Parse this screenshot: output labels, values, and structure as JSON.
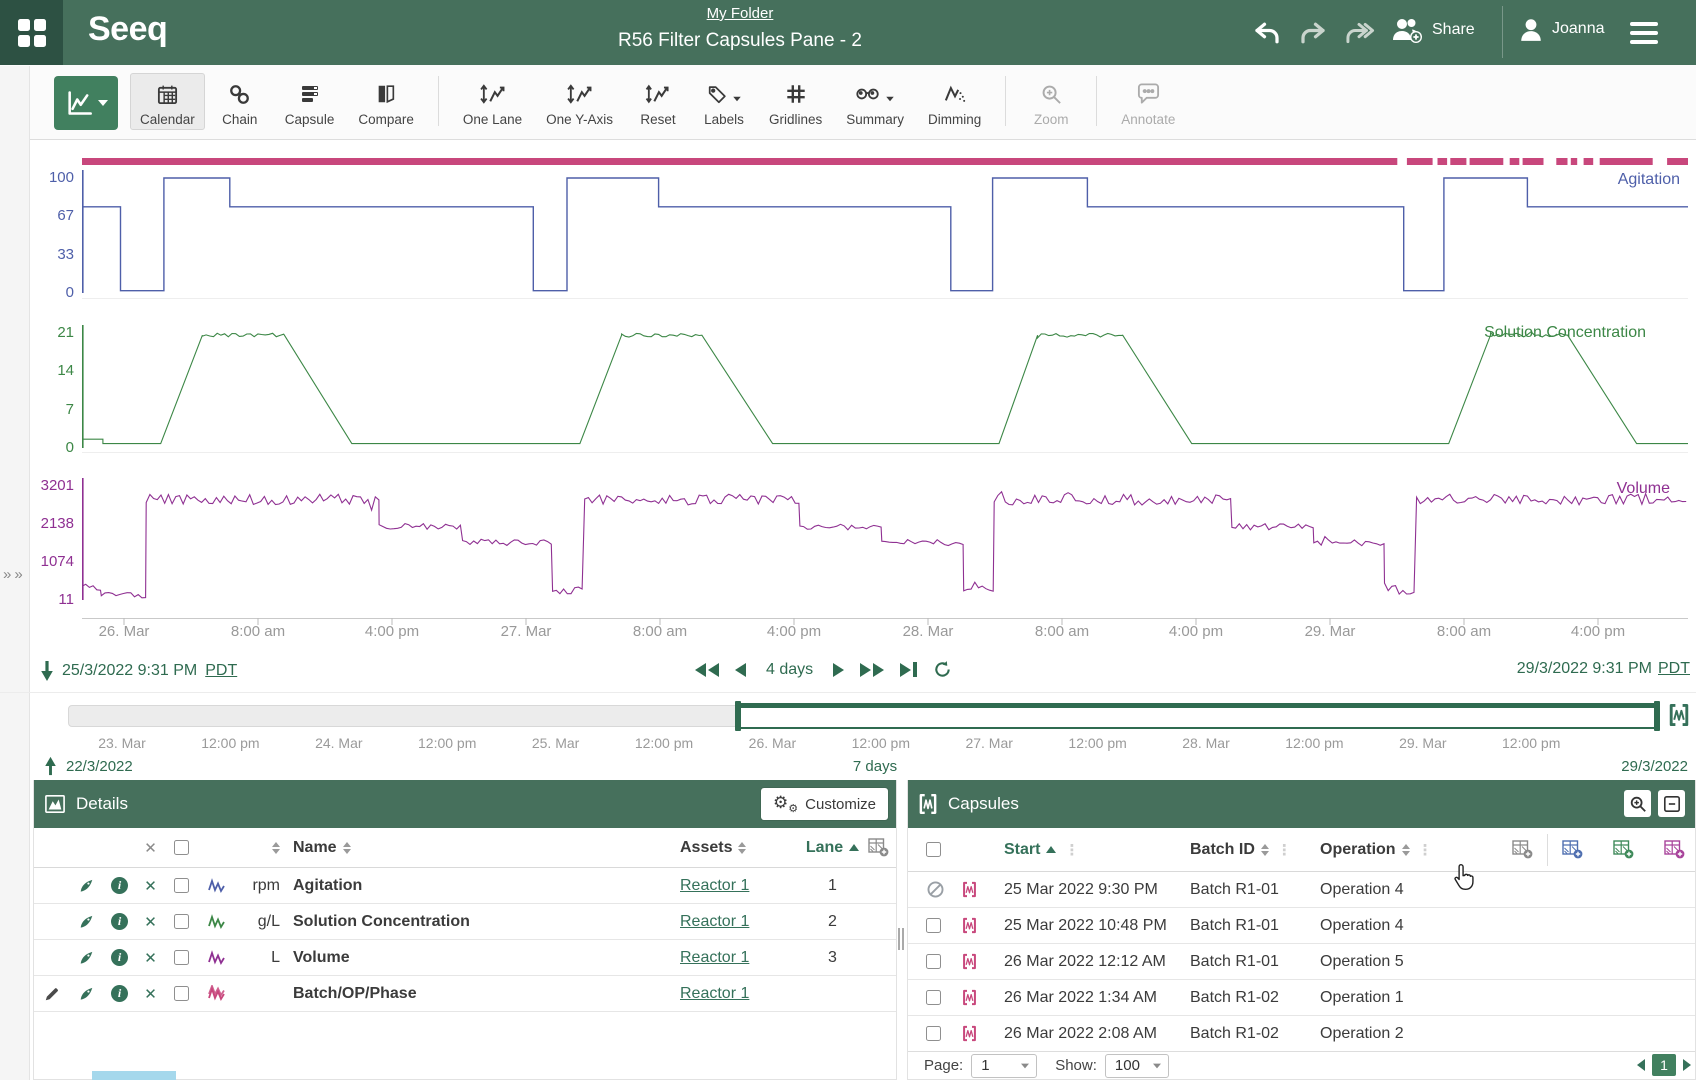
{
  "header": {
    "breadcrumb": "My Folder",
    "title": "R56 Filter Capsules Pane - 2",
    "share": "Share",
    "user": "Joanna"
  },
  "toolbar": {
    "tools": [
      {
        "id": "calendar",
        "label": "Calendar",
        "icon": "calendar",
        "group": 1,
        "active": true
      },
      {
        "id": "chain",
        "label": "Chain",
        "icon": "chain",
        "group": 1
      },
      {
        "id": "capsule",
        "label": "Capsule",
        "icon": "capsule",
        "group": 1
      },
      {
        "id": "compare",
        "label": "Compare",
        "icon": "compare",
        "group": 1
      },
      {
        "id": "one-lane",
        "label": "One Lane",
        "icon": "onelane",
        "group": 2
      },
      {
        "id": "one-y-axis",
        "label": "One Y-Axis",
        "icon": "onelane",
        "group": 2
      },
      {
        "id": "reset",
        "label": "Reset",
        "icon": "reset",
        "group": 2
      },
      {
        "id": "labels",
        "label": "Labels",
        "icon": "labels",
        "group": 2,
        "dropdown": true
      },
      {
        "id": "gridlines",
        "label": "Gridlines",
        "icon": "gridlines",
        "group": 2
      },
      {
        "id": "summary",
        "label": "Summary",
        "icon": "summary",
        "group": 2,
        "dropdown": true
      },
      {
        "id": "dimming",
        "label": "Dimming",
        "icon": "dimming",
        "group": 2
      },
      {
        "id": "zoom",
        "label": "Zoom",
        "icon": "zoomtool",
        "group": 3,
        "disabled": true
      },
      {
        "id": "annotate",
        "label": "Annotate",
        "icon": "annotate",
        "group": 4,
        "disabled": true
      }
    ]
  },
  "colors": {
    "topbar": "#46705C",
    "topbar_dark": "#2D5143",
    "accent": "#35715A",
    "accent_deep": "#2F6B50",
    "agitation": "#4E5FA9",
    "solution": "#3C8746",
    "volume": "#8F3092",
    "capsule_pink": "#C8477C"
  },
  "chart_data": {
    "type": "line",
    "x_domain": [
      "25 Mar 2022 9:31 PM",
      "29 Mar 2022 9:31 PM"
    ],
    "grid": false,
    "legend_position": "right-inline",
    "series": [
      {
        "lane": 1,
        "name": "Agitation",
        "unit": "rpm",
        "color_key": "agitation",
        "ylim": [
          0,
          100
        ],
        "yticks": [
          100,
          67,
          33,
          0
        ],
        "segments": [
          [
            0,
            0.024,
            75,
            75,
            0
          ],
          [
            0.024,
            0.051,
            2,
            2,
            0
          ],
          [
            0.051,
            0.092,
            100,
            100,
            0
          ],
          [
            0.092,
            0.281,
            75,
            75,
            0
          ],
          [
            0.281,
            0.302,
            2,
            2,
            0
          ],
          [
            0.302,
            0.359,
            100,
            100,
            0
          ],
          [
            0.359,
            0.541,
            75,
            75,
            0
          ],
          [
            0.541,
            0.567,
            2,
            2,
            0
          ],
          [
            0.567,
            0.626,
            100,
            100,
            0
          ],
          [
            0.626,
            0.823,
            75,
            75,
            0
          ],
          [
            0.823,
            0.848,
            2,
            2,
            0
          ],
          [
            0.848,
            0.9,
            100,
            100,
            0
          ],
          [
            0.9,
            1,
            75,
            75,
            0
          ]
        ]
      },
      {
        "lane": 2,
        "name": "Solution Concentration",
        "unit": "g/L",
        "color_key": "solution",
        "ylim": [
          0,
          21
        ],
        "yticks": [
          21,
          14,
          7,
          0
        ],
        "segments": [
          [
            0,
            0.013,
            1.6,
            1.6,
            0
          ],
          [
            0.013,
            0.049,
            0.8,
            0.8,
            0
          ],
          [
            0.049,
            0.075,
            0.8,
            20.6,
            0
          ],
          [
            0.075,
            0.126,
            20.6,
            20.6,
            0.35
          ],
          [
            0.126,
            0.168,
            20.6,
            0.8,
            0
          ],
          [
            0.168,
            0.31,
            0.8,
            0.8,
            0
          ],
          [
            0.31,
            0.336,
            0.8,
            20.6,
            0
          ],
          [
            0.336,
            0.386,
            20.6,
            20.6,
            0.35
          ],
          [
            0.386,
            0.43,
            20.6,
            0.8,
            0
          ],
          [
            0.43,
            0.571,
            0.8,
            0.8,
            0
          ],
          [
            0.571,
            0.595,
            0.8,
            20.6,
            0
          ],
          [
            0.595,
            0.648,
            20.6,
            20.6,
            0.35
          ],
          [
            0.648,
            0.691,
            20.6,
            0.8,
            0
          ],
          [
            0.691,
            0.851,
            0.8,
            0.8,
            0
          ],
          [
            0.851,
            0.877,
            0.8,
            20.6,
            0
          ],
          [
            0.877,
            0.925,
            20.6,
            20.6,
            0.35
          ],
          [
            0.925,
            0.968,
            20.6,
            0.8,
            0
          ],
          [
            0.968,
            1,
            0.8,
            0.8,
            0
          ]
        ]
      },
      {
        "lane": 3,
        "name": "Volume",
        "unit": "L",
        "color_key": "volume",
        "ylim": [
          11,
          3201
        ],
        "yticks": [
          3201,
          2138,
          1074,
          11
        ],
        "segments": [
          [
            0,
            0.012,
            350,
            350,
            120
          ],
          [
            0.012,
            0.04,
            160,
            160,
            90
          ],
          [
            0.04,
            0.185,
            2820,
            2820,
            150
          ],
          [
            0.185,
            0.237,
            2060,
            2060,
            90
          ],
          [
            0.237,
            0.293,
            1620,
            1620,
            90
          ],
          [
            0.293,
            0.313,
            300,
            300,
            130
          ],
          [
            0.313,
            0.447,
            2820,
            2820,
            150
          ],
          [
            0.447,
            0.498,
            2060,
            2060,
            90
          ],
          [
            0.498,
            0.549,
            1620,
            1620,
            90
          ],
          [
            0.549,
            0.568,
            300,
            300,
            130
          ],
          [
            0.568,
            0.716,
            2820,
            2820,
            150
          ],
          [
            0.716,
            0.767,
            2060,
            2060,
            90
          ],
          [
            0.767,
            0.811,
            1620,
            1620,
            90
          ],
          [
            0.811,
            0.831,
            300,
            300,
            130
          ],
          [
            0.831,
            1,
            2820,
            2820,
            150
          ]
        ]
      }
    ],
    "capsule_bar": {
      "color_key": "capsule_pink",
      "segments": [
        [
          0,
          0.819
        ],
        [
          0.825,
          0.841
        ],
        [
          0.844,
          0.85
        ],
        [
          0.852,
          0.862
        ],
        [
          0.864,
          0.885
        ],
        [
          0.889,
          0.895
        ],
        [
          0.897,
          0.91
        ],
        [
          0.918,
          0.925
        ],
        [
          0.927,
          0.931
        ],
        [
          0.935,
          0.941
        ],
        [
          0.945,
          0.978
        ],
        [
          0.987,
          1
        ]
      ]
    },
    "xlabels": [
      "26. Mar",
      "8:00 am",
      "4:00 pm",
      "27. Mar",
      "8:00 am",
      "4:00 pm",
      "28. Mar",
      "8:00 am",
      "4:00 pm",
      "29. Mar",
      "8:00 am",
      "4:00 pm"
    ]
  },
  "nav": {
    "start": "25/3/2022 9:31 PM",
    "start_tz": "PDT",
    "range": "4 days",
    "end": "29/3/2022 9:31 PM",
    "end_tz": "PDT"
  },
  "scrubber": {
    "labels": [
      "23. Mar",
      "12:00 pm",
      "24. Mar",
      "12:00 pm",
      "25. Mar",
      "12:00 pm",
      "26. Mar",
      "12:00 pm",
      "27. Mar",
      "12:00 pm",
      "28. Mar",
      "12:00 pm",
      "29. Mar",
      "12:00 pm"
    ],
    "range_start": "22/3/2022",
    "range_label": "7 days",
    "range_end": "29/3/2022"
  },
  "details": {
    "title": "Details",
    "customize": "Customize",
    "columns": {
      "name": "Name",
      "assets": "Assets",
      "lane": "Lane"
    },
    "rows": [
      {
        "unit": "rpm",
        "name": "Agitation",
        "asset": "Reactor 1",
        "lane": "1",
        "color_key": "agitation",
        "editable": false
      },
      {
        "unit": "g/L",
        "name": "Solution Concentration",
        "asset": "Reactor 1",
        "lane": "2",
        "color_key": "solution",
        "editable": false
      },
      {
        "unit": "L",
        "name": "Volume",
        "asset": "Reactor 1",
        "lane": "3",
        "color_key": "volume",
        "editable": false
      },
      {
        "unit": "",
        "name": "Batch/OP/Phase",
        "asset": "Reactor 1",
        "lane": "",
        "color_key": "capsule_pink",
        "editable": true
      }
    ]
  },
  "capsules": {
    "title": "Capsules",
    "columns": {
      "start": "Start",
      "batch": "Batch ID",
      "operation": "Operation"
    },
    "rows": [
      {
        "start": "25 Mar 2022 9:30 PM",
        "batch": "Batch R1-01",
        "operation": "Operation 4",
        "excluded": true
      },
      {
        "start": "25 Mar 2022 10:48 PM",
        "batch": "Batch R1-01",
        "operation": "Operation 4",
        "excluded": false
      },
      {
        "start": "26 Mar 2022 12:12 AM",
        "batch": "Batch R1-01",
        "operation": "Operation 5",
        "excluded": false
      },
      {
        "start": "26 Mar 2022 1:34 AM",
        "batch": "Batch R1-02",
        "operation": "Operation 1",
        "excluded": false
      },
      {
        "start": "26 Mar 2022 2:08 AM",
        "batch": "Batch R1-02",
        "operation": "Operation 2",
        "excluded": false
      }
    ],
    "pagination": {
      "page_label": "Page:",
      "page": "1",
      "show_label": "Show:",
      "show": "100",
      "current": "1"
    }
  }
}
